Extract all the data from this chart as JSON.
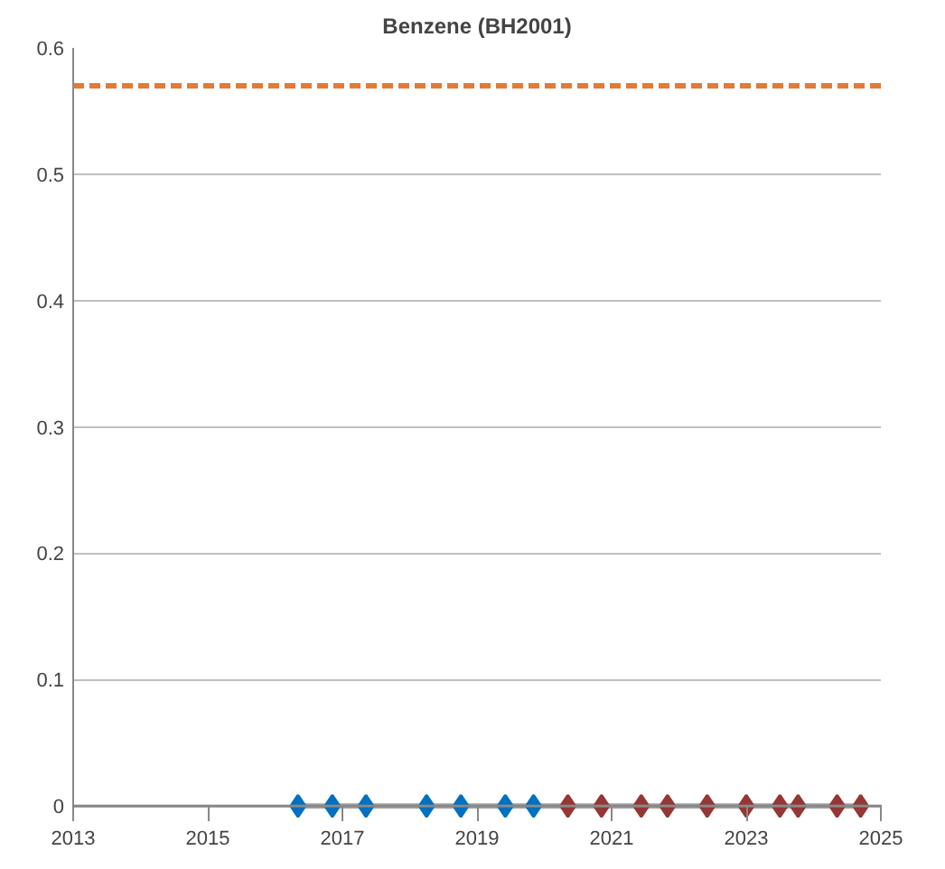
{
  "chart_data": {
    "type": "scatter",
    "title": "Benzene (BH2001)",
    "marker": "diamond",
    "grid": "y",
    "xlim": [
      2013,
      2025
    ],
    "xticks": [
      2013,
      2015,
      2017,
      2019,
      2021,
      2023,
      2025
    ],
    "ylim": [
      0,
      0.6
    ],
    "yticks": [
      0,
      {
        "value": 0.1,
        "label": "0.1"
      },
      {
        "value": 0.2,
        "label": "0.2"
      },
      {
        "value": 0.3,
        "label": "0.3"
      },
      {
        "value": 0.4,
        "label": "0.4"
      },
      {
        "value": 0.5,
        "label": "0.5"
      },
      {
        "value": 0.6,
        "label": "0.6"
      }
    ],
    "ref_lines": [
      {
        "axis": "y",
        "value": 0.57,
        "color": "#e07b39",
        "line_style": "dashed"
      }
    ],
    "series": [
      {
        "type": "line",
        "marker": "none",
        "color": "#a6a6a6",
        "x": [
          2016.34,
          2016.85,
          2017.35,
          2018.25,
          2018.76,
          2019.42,
          2019.84,
          2020.35,
          2020.85,
          2021.44,
          2021.83,
          2022.42,
          2023.0,
          2023.5,
          2023.77,
          2024.35,
          2024.7
        ],
        "values": [
          0,
          0,
          0,
          0,
          0,
          0,
          0,
          0,
          0,
          0,
          0,
          0,
          0,
          0,
          0,
          0,
          0
        ]
      },
      {
        "color": "#0070c0",
        "x": [
          2016.34,
          2016.85,
          2019.42,
          2019.84
        ],
        "values": [
          0,
          0,
          0,
          0
        ]
      },
      {
        "color": "#0070c0",
        "x": [
          2017.35,
          2018.25,
          2018.76
        ],
        "values": [
          0,
          0,
          0
        ]
      },
      {
        "color": "#953735",
        "x": [
          2020.35
        ],
        "values": [
          0
        ]
      },
      {
        "color": "#953735",
        "x": [
          2020.85,
          2021.44,
          2021.83,
          2022.42,
          2023.0,
          2023.5,
          2023.77,
          2024.35,
          2024.7
        ],
        "values": [
          0,
          0,
          0,
          0,
          0,
          0,
          0,
          0,
          0
        ]
      }
    ]
  }
}
